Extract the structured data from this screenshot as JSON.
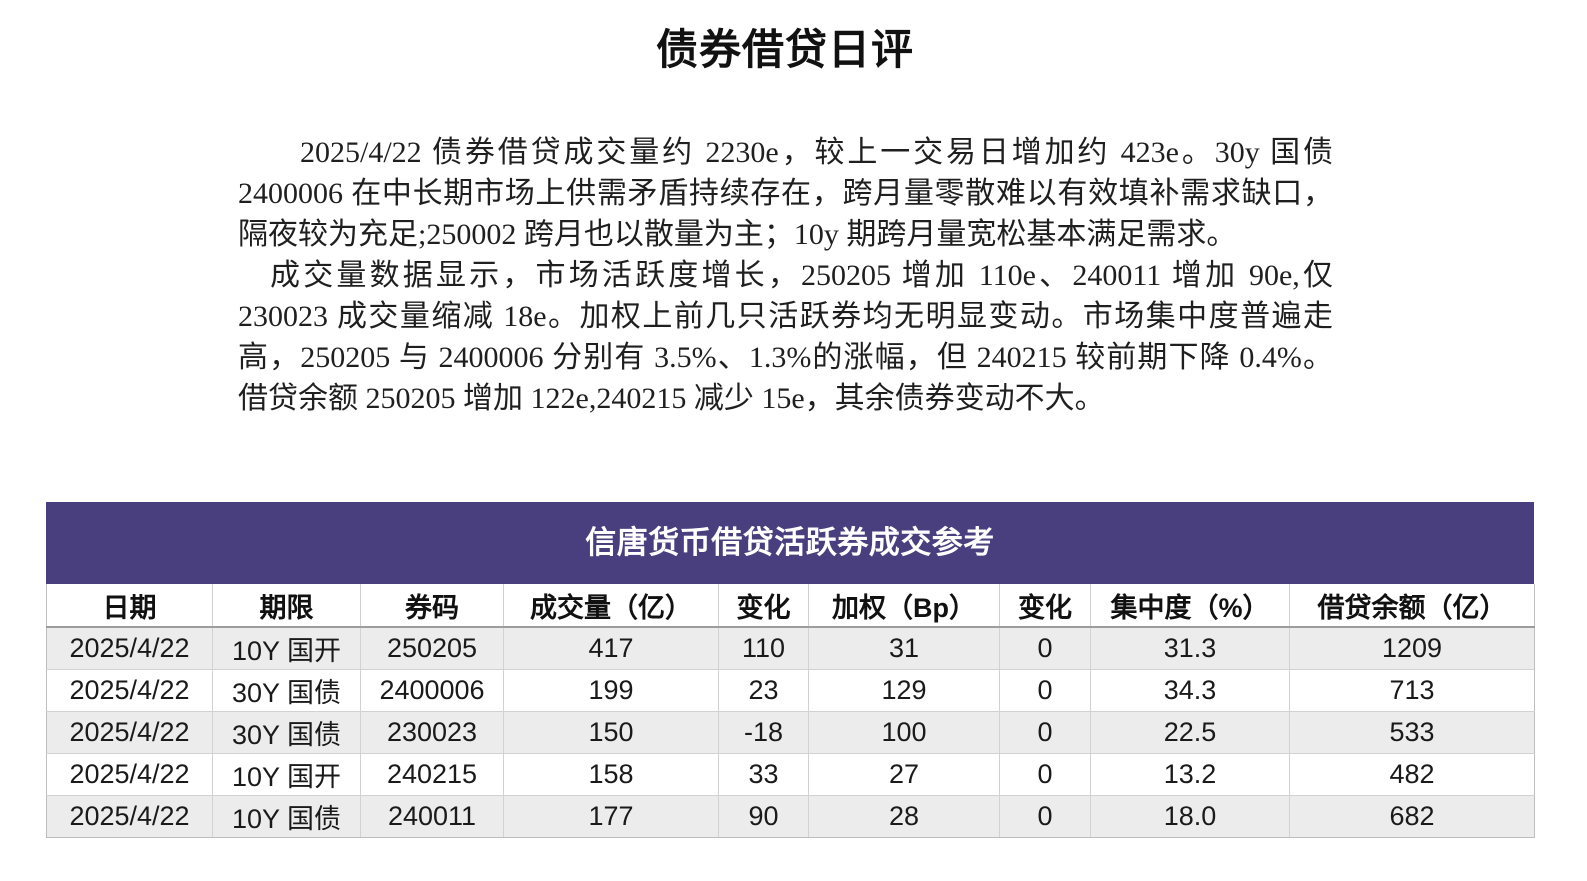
{
  "document": {
    "title": "债券借贷日评",
    "paragraphs": [
      {
        "lines": [
          "2025/4/22 债券借贷成交量约 2230e，较上一交易日增加约 423e。30y 国债",
          "2400006 在中长期市场上供需矛盾持续存在，跨月量零散难以有效填补需求缺口，",
          "隔夜较为充足;250002 跨月也以散量为主；10y 期跨月量宽松基本满足需求。"
        ]
      },
      {
        "lines": [
          "成交量数据显示，市场活跃度增长，250205 增加 110e、240011 增加 90e,仅",
          "230023 成交量缩减 18e。加权上前几只活跃券均无明显变动。市场集中度普遍走",
          "高，250205 与 2400006 分别有 3.5%、1.3%的涨幅，但 240215 较前期下降 0.4%。",
          "借贷余额 250205 增加 122e,240215 减少 15e，其余债券变动不大。"
        ]
      }
    ]
  },
  "table": {
    "title": "信唐货币借贷活跃券成交参考",
    "columns": [
      "日期",
      "期限",
      "券码",
      "成交量（亿）",
      "变化",
      "加权（Bp）",
      "变化",
      "集中度（%）",
      "借贷余额（亿）"
    ],
    "rows": [
      {
        "date": "2025/4/22",
        "term": "10Y 国开",
        "code": "250205",
        "volume": "417",
        "volume_change": "110",
        "weighted_bp": "31",
        "weighted_change": "0",
        "concentration": "31.3",
        "balance": "1209"
      },
      {
        "date": "2025/4/22",
        "term": "30Y 国债",
        "code": "2400006",
        "volume": "199",
        "volume_change": "23",
        "weighted_bp": "129",
        "weighted_change": "0",
        "concentration": "34.3",
        "balance": "713"
      },
      {
        "date": "2025/4/22",
        "term": "30Y 国债",
        "code": "230023",
        "volume": "150",
        "volume_change": "-18",
        "weighted_bp": "100",
        "weighted_change": "0",
        "concentration": "22.5",
        "balance": "533"
      },
      {
        "date": "2025/4/22",
        "term": "10Y 国开",
        "code": "240215",
        "volume": "158",
        "volume_change": "33",
        "weighted_bp": "27",
        "weighted_change": "0",
        "concentration": "13.2",
        "balance": "482"
      },
      {
        "date": "2025/4/22",
        "term": "10Y 国债",
        "code": "240011",
        "volume": "177",
        "volume_change": "90",
        "weighted_bp": "28",
        "weighted_change": "0",
        "concentration": "18.0",
        "balance": "682"
      }
    ]
  },
  "colors": {
    "title_band": "#4a3f7e",
    "stripe_row": "#ececec"
  }
}
